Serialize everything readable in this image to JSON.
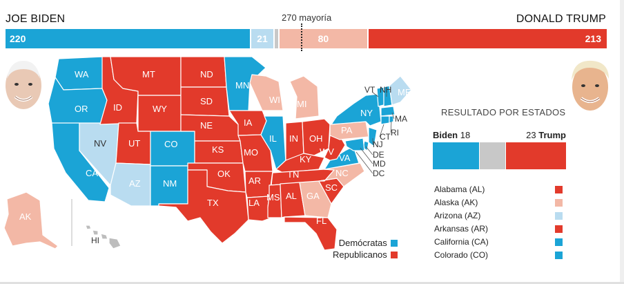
{
  "header": {
    "biden_name": "JOE BIDEN",
    "trump_name": "DONALD TRUMP",
    "majority_label": "270 mayoría"
  },
  "electoral_bar": {
    "total": 538,
    "biden_solid": 220,
    "biden_lean": 21,
    "trump_lean": 80,
    "trump_solid": 213,
    "biden_solid_label": "220",
    "biden_lean_label": "21",
    "trump_lean_label": "80",
    "trump_solid_label": "213"
  },
  "colors": {
    "dem": "#1ba4d6",
    "dem_lean": "#b9dcf0",
    "rep": "#e23a2b",
    "rep_lean": "#f3b8a6",
    "undecided": "#c8c8c8"
  },
  "map": {
    "labels": {
      "wa": "WA",
      "or": "OR",
      "ca": "CA",
      "nv": "NV",
      "id": "ID",
      "mt": "MT",
      "wy": "WY",
      "ut": "UT",
      "az": "AZ",
      "co": "CO",
      "nm": "NM",
      "nd": "ND",
      "sd": "SD",
      "ne": "NE",
      "ks": "KS",
      "ok": "OK",
      "tx": "TX",
      "mn": "MN",
      "ia": "IA",
      "mo": "MO",
      "ar": "AR",
      "la": "LA",
      "wi": "WI",
      "il": "IL",
      "mi": "MI",
      "in": "IN",
      "oh": "OH",
      "ky": "KY",
      "tn": "TN",
      "ms": "MS",
      "al": "AL",
      "ga": "GA",
      "fl": "FL",
      "sc": "SC",
      "nc": "NC",
      "va": "VA",
      "wv": "WV",
      "pa": "PA",
      "ny": "NY",
      "vt": "VT",
      "nh": "NH",
      "me": "ME",
      "ma": "MA",
      "ri": "RI",
      "ct": "CT",
      "nj": "NJ",
      "de": "DE",
      "md": "MD",
      "dc": "DC",
      "ak": "AK",
      "hi": "HI"
    },
    "legend": {
      "dem": "Demócratas",
      "rep": "Republicanos"
    }
  },
  "results": {
    "title": "RESULTADO POR ESTADOS",
    "biden_label": "Biden",
    "biden_count": 18,
    "trump_label": "Trump",
    "trump_count": 23,
    "undecided_count": 10,
    "list": [
      {
        "name": "Alabama (AL)",
        "color": "#e23a2b"
      },
      {
        "name": "Alaska (AK)",
        "color": "#f3b8a6"
      },
      {
        "name": "Arizona (AZ)",
        "color": "#b9dcf0"
      },
      {
        "name": "Arkansas (AR)",
        "color": "#e23a2b"
      },
      {
        "name": "California (CA)",
        "color": "#1ba4d6"
      },
      {
        "name": "Colorado (CO)",
        "color": "#1ba4d6"
      }
    ]
  }
}
